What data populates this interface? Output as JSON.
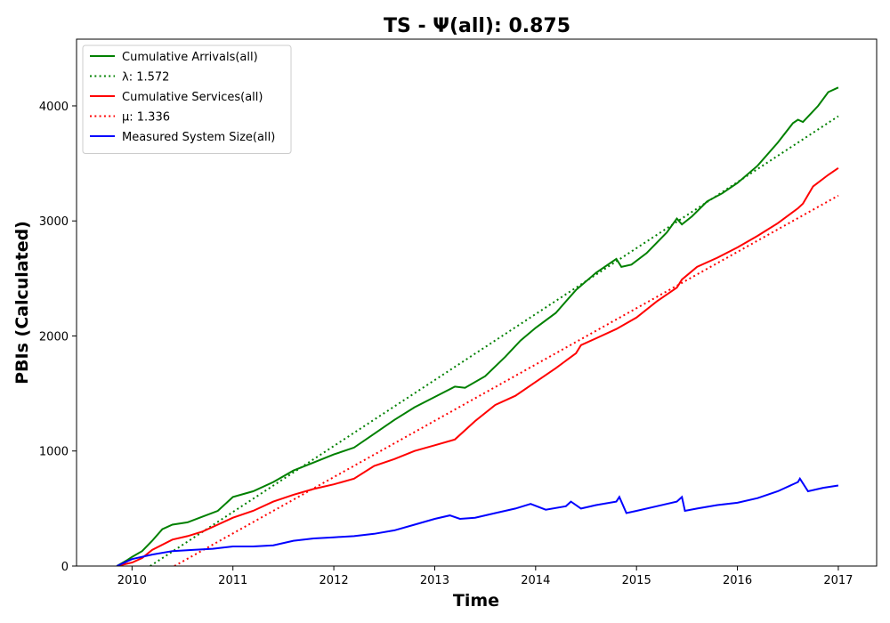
{
  "chart_data": {
    "type": "line",
    "title": "TS -  Ψ(all): 0.875",
    "xlabel": "Time",
    "ylabel": "PBIs (Calculated)",
    "xlim": [
      2009.45,
      2017.38
    ],
    "ylim": [
      0,
      4580
    ],
    "grid": false,
    "legend_position": "top-left",
    "x_ticks": [
      2010,
      2011,
      2012,
      2013,
      2014,
      2015,
      2016,
      2017
    ],
    "x_tick_labels": [
      "2010",
      "2011",
      "2012",
      "2013",
      "2014",
      "2015",
      "2016",
      "2017"
    ],
    "y_ticks": [
      0,
      1000,
      2000,
      3000,
      4000
    ],
    "y_tick_labels": [
      "0",
      "1000",
      "2000",
      "3000",
      "4000"
    ],
    "series": [
      {
        "name": "Cumulative Arrivals(all)",
        "color": "#008000",
        "style": "solid",
        "x": [
          2009.85,
          2009.95,
          2010.0,
          2010.1,
          2010.2,
          2010.3,
          2010.4,
          2010.55,
          2010.7,
          2010.85,
          2011.0,
          2011.2,
          2011.4,
          2011.6,
          2011.8,
          2012.0,
          2012.2,
          2012.4,
          2012.6,
          2012.8,
          2013.0,
          2013.2,
          2013.3,
          2013.5,
          2013.7,
          2013.85,
          2014.0,
          2014.2,
          2014.4,
          2014.6,
          2014.8,
          2014.85,
          2014.95,
          2015.1,
          2015.3,
          2015.4,
          2015.45,
          2015.55,
          2015.7,
          2015.85,
          2016.0,
          2016.2,
          2016.4,
          2016.55,
          2016.6,
          2016.65,
          2016.8,
          2016.9,
          2017.0
        ],
        "y": [
          0,
          50,
          80,
          130,
          220,
          320,
          360,
          380,
          430,
          480,
          600,
          650,
          730,
          830,
          900,
          970,
          1030,
          1150,
          1270,
          1380,
          1470,
          1560,
          1550,
          1650,
          1820,
          1960,
          2070,
          2200,
          2400,
          2550,
          2670,
          2600,
          2620,
          2720,
          2900,
          3020,
          2970,
          3040,
          3170,
          3240,
          3330,
          3480,
          3680,
          3850,
          3880,
          3860,
          4000,
          4120,
          4160
        ]
      },
      {
        "name": "λ: 1.572",
        "color": "#008000",
        "style": "dotted",
        "x": [
          2010.18,
          2017.0
        ],
        "y": [
          0,
          3910
        ]
      },
      {
        "name": "Cumulative Services(all)",
        "color": "#ff0000",
        "style": "solid",
        "x": [
          2009.85,
          2010.0,
          2010.1,
          2010.2,
          2010.4,
          2010.55,
          2010.7,
          2010.85,
          2011.0,
          2011.2,
          2011.4,
          2011.6,
          2011.8,
          2012.0,
          2012.2,
          2012.4,
          2012.6,
          2012.8,
          2013.0,
          2013.2,
          2013.4,
          2013.6,
          2013.8,
          2014.0,
          2014.2,
          2014.4,
          2014.45,
          2014.6,
          2014.8,
          2015.0,
          2015.2,
          2015.4,
          2015.45,
          2015.6,
          2015.8,
          2016.0,
          2016.2,
          2016.4,
          2016.6,
          2016.65,
          2016.75,
          2016.9,
          2017.0
        ],
        "y": [
          0,
          30,
          70,
          140,
          230,
          260,
          300,
          360,
          420,
          480,
          560,
          620,
          670,
          710,
          760,
          870,
          930,
          1000,
          1050,
          1100,
          1260,
          1400,
          1480,
          1600,
          1720,
          1850,
          1920,
          1980,
          2060,
          2160,
          2300,
          2420,
          2490,
          2600,
          2680,
          2770,
          2870,
          2980,
          3110,
          3150,
          3300,
          3400,
          3460
        ]
      },
      {
        "name": "μ: 1.336",
        "color": "#ff0000",
        "style": "dotted",
        "x": [
          2010.42,
          2017.0
        ],
        "y": [
          0,
          3220
        ]
      },
      {
        "name": "Measured System Size(all)",
        "color": "#0000ff",
        "style": "solid",
        "x": [
          2009.85,
          2010.0,
          2010.2,
          2010.4,
          2010.6,
          2010.8,
          2011.0,
          2011.2,
          2011.4,
          2011.6,
          2011.8,
          2012.0,
          2012.2,
          2012.4,
          2012.6,
          2012.8,
          2013.0,
          2013.15,
          2013.25,
          2013.4,
          2013.6,
          2013.8,
          2013.95,
          2014.1,
          2014.3,
          2014.35,
          2014.45,
          2014.6,
          2014.8,
          2014.83,
          2014.9,
          2015.0,
          2015.2,
          2015.4,
          2015.45,
          2015.48,
          2015.6,
          2015.8,
          2016.0,
          2016.2,
          2016.4,
          2016.6,
          2016.62,
          2016.7,
          2016.85,
          2017.0
        ],
        "y": [
          0,
          60,
          100,
          130,
          140,
          150,
          170,
          170,
          180,
          220,
          240,
          250,
          260,
          280,
          310,
          360,
          410,
          440,
          410,
          420,
          460,
          500,
          540,
          490,
          520,
          560,
          500,
          530,
          560,
          600,
          460,
          480,
          520,
          560,
          600,
          480,
          500,
          530,
          550,
          590,
          650,
          730,
          760,
          650,
          680,
          700
        ]
      }
    ]
  }
}
